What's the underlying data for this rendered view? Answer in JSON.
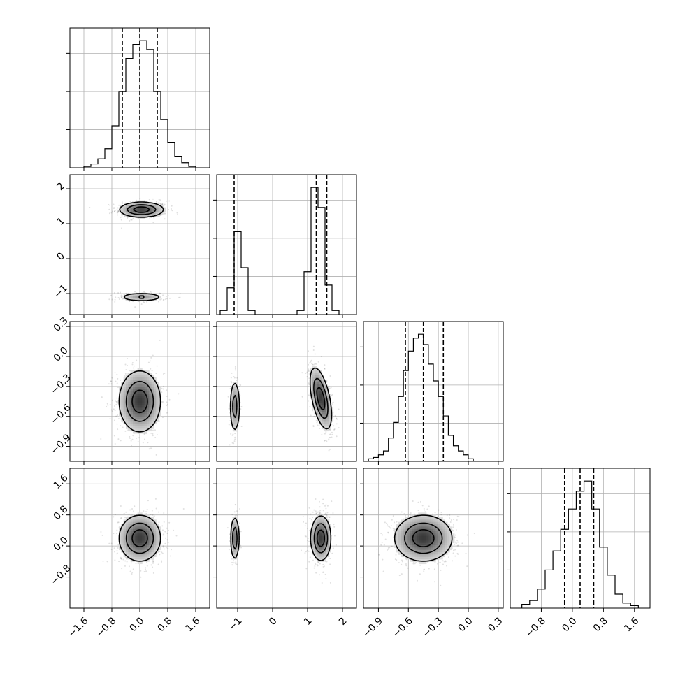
{
  "chart_data": {
    "type": "corner",
    "parameters": [
      {
        "id": "p0",
        "range": [
          -2.0,
          2.0
        ],
        "quantiles": [
          -0.5,
          0.0,
          0.5
        ],
        "ticks": [
          -1.6,
          -0.8,
          0.0,
          0.8,
          1.6
        ],
        "tick_labels": [
          "−1.6",
          "−0.8",
          "0.0",
          "0.8",
          "1.6"
        ]
      },
      {
        "id": "p1",
        "range": [
          -1.6,
          2.4
        ],
        "quantiles": [
          -1.1,
          1.25,
          1.55
        ],
        "ticks": [
          -1,
          0,
          1,
          2
        ],
        "tick_labels": [
          "−1",
          "0",
          "1",
          "2"
        ]
      },
      {
        "id": "p2",
        "range": [
          -1.05,
          0.35
        ],
        "quantiles": [
          -0.63,
          -0.45,
          -0.25
        ],
        "ticks": [
          -0.9,
          -0.6,
          -0.3,
          0.0,
          0.3
        ],
        "tick_labels": [
          "−0.9",
          "−0.6",
          "−0.3",
          "0.0",
          "0.3"
        ]
      },
      {
        "id": "p3",
        "range": [
          -1.6,
          2.0
        ],
        "quantiles": [
          -0.2,
          0.2,
          0.55
        ],
        "ticks": [
          -0.8,
          0.0,
          0.8,
          1.6
        ],
        "tick_labels": [
          "−0.8",
          "0.0",
          "0.8",
          "1.6"
        ]
      }
    ],
    "histograms": [
      {
        "param": "p0",
        "bin_edges": [
          -1.6,
          -1.4,
          -1.2,
          -1.0,
          -0.8,
          -0.6,
          -0.4,
          -0.2,
          0.0,
          0.2,
          0.4,
          0.6,
          0.8,
          1.0,
          1.2,
          1.4,
          1.6
        ],
        "counts": [
          0.01,
          0.03,
          0.07,
          0.15,
          0.33,
          0.6,
          0.86,
          0.97,
          1.0,
          0.93,
          0.6,
          0.38,
          0.2,
          0.09,
          0.04,
          0.01
        ]
      },
      {
        "param": "p1",
        "bin_edges": [
          -1.5,
          -1.3,
          -1.1,
          -0.9,
          -0.7,
          -0.5,
          -0.3,
          -0.1,
          0.1,
          0.3,
          0.5,
          0.7,
          0.9,
          1.1,
          1.3,
          1.5,
          1.7,
          1.9
        ],
        "counts": [
          0.03,
          0.2,
          0.62,
          0.35,
          0.03,
          0.0,
          0.0,
          0.0,
          0.0,
          0.0,
          0.0,
          0.03,
          0.32,
          0.95,
          0.8,
          0.22,
          0.03
        ]
      },
      {
        "param": "p2",
        "bin_edges": [
          -1.0,
          -0.95,
          -0.9,
          -0.85,
          -0.8,
          -0.75,
          -0.7,
          -0.65,
          -0.6,
          -0.55,
          -0.5,
          -0.45,
          -0.4,
          -0.35,
          -0.3,
          -0.25,
          -0.2,
          -0.15,
          -0.1,
          -0.05,
          0.0,
          0.05
        ],
        "counts": [
          0.02,
          0.03,
          0.05,
          0.08,
          0.18,
          0.3,
          0.5,
          0.7,
          0.85,
          0.95,
          0.98,
          0.9,
          0.75,
          0.62,
          0.5,
          0.35,
          0.2,
          0.12,
          0.08,
          0.05,
          0.02
        ]
      },
      {
        "param": "p3",
        "bin_edges": [
          -1.3,
          -1.1,
          -0.9,
          -0.7,
          -0.5,
          -0.3,
          -0.1,
          0.1,
          0.3,
          0.5,
          0.7,
          0.9,
          1.1,
          1.3,
          1.5,
          1.7
        ],
        "counts": [
          0.03,
          0.06,
          0.15,
          0.3,
          0.45,
          0.62,
          0.78,
          0.92,
          1.0,
          0.78,
          0.48,
          0.26,
          0.11,
          0.04,
          0.02
        ]
      }
    ],
    "pairs": [
      {
        "x": "p0",
        "y": "p1",
        "blobs": [
          {
            "cx": 0.05,
            "cy": 1.4,
            "sx": 0.35,
            "sy": 0.12,
            "rho": 0.0,
            "weight": 0.75
          },
          {
            "cx": 0.05,
            "cy": -1.1,
            "sx": 0.35,
            "sy": 0.07,
            "rho": 0.0,
            "weight": 0.25
          }
        ]
      },
      {
        "x": "p0",
        "y": "p2",
        "blobs": [
          {
            "cx": 0.0,
            "cy": -0.45,
            "sx": 0.33,
            "sy": 0.17,
            "rho": 0.0,
            "weight": 1.0
          }
        ]
      },
      {
        "x": "p1",
        "y": "p2",
        "blobs": [
          {
            "cx": -1.08,
            "cy": -0.5,
            "sx": 0.08,
            "sy": 0.15,
            "rho": 0.0,
            "weight": 0.25
          },
          {
            "cx": 1.38,
            "cy": -0.42,
            "sx": 0.17,
            "sy": 0.17,
            "rho": -0.55,
            "weight": 0.75
          }
        ]
      },
      {
        "x": "p0",
        "y": "p3",
        "blobs": [
          {
            "cx": 0.0,
            "cy": 0.2,
            "sx": 0.33,
            "sy": 0.33,
            "rho": 0.0,
            "weight": 1.0
          }
        ]
      },
      {
        "x": "p1",
        "y": "p3",
        "blobs": [
          {
            "cx": -1.08,
            "cy": 0.2,
            "sx": 0.07,
            "sy": 0.32,
            "rho": 0.0,
            "weight": 0.25
          },
          {
            "cx": 1.38,
            "cy": 0.2,
            "sx": 0.16,
            "sy": 0.32,
            "rho": 0.0,
            "weight": 0.75
          }
        ]
      },
      {
        "x": "p2",
        "y": "p3",
        "blobs": [
          {
            "cx": -0.45,
            "cy": 0.2,
            "sx": 0.16,
            "sy": 0.33,
            "rho": 0.0,
            "weight": 1.0
          }
        ]
      }
    ],
    "contour_levels": [
      0.2,
      0.5,
      0.8
    ],
    "grid": true,
    "legend": "none"
  }
}
